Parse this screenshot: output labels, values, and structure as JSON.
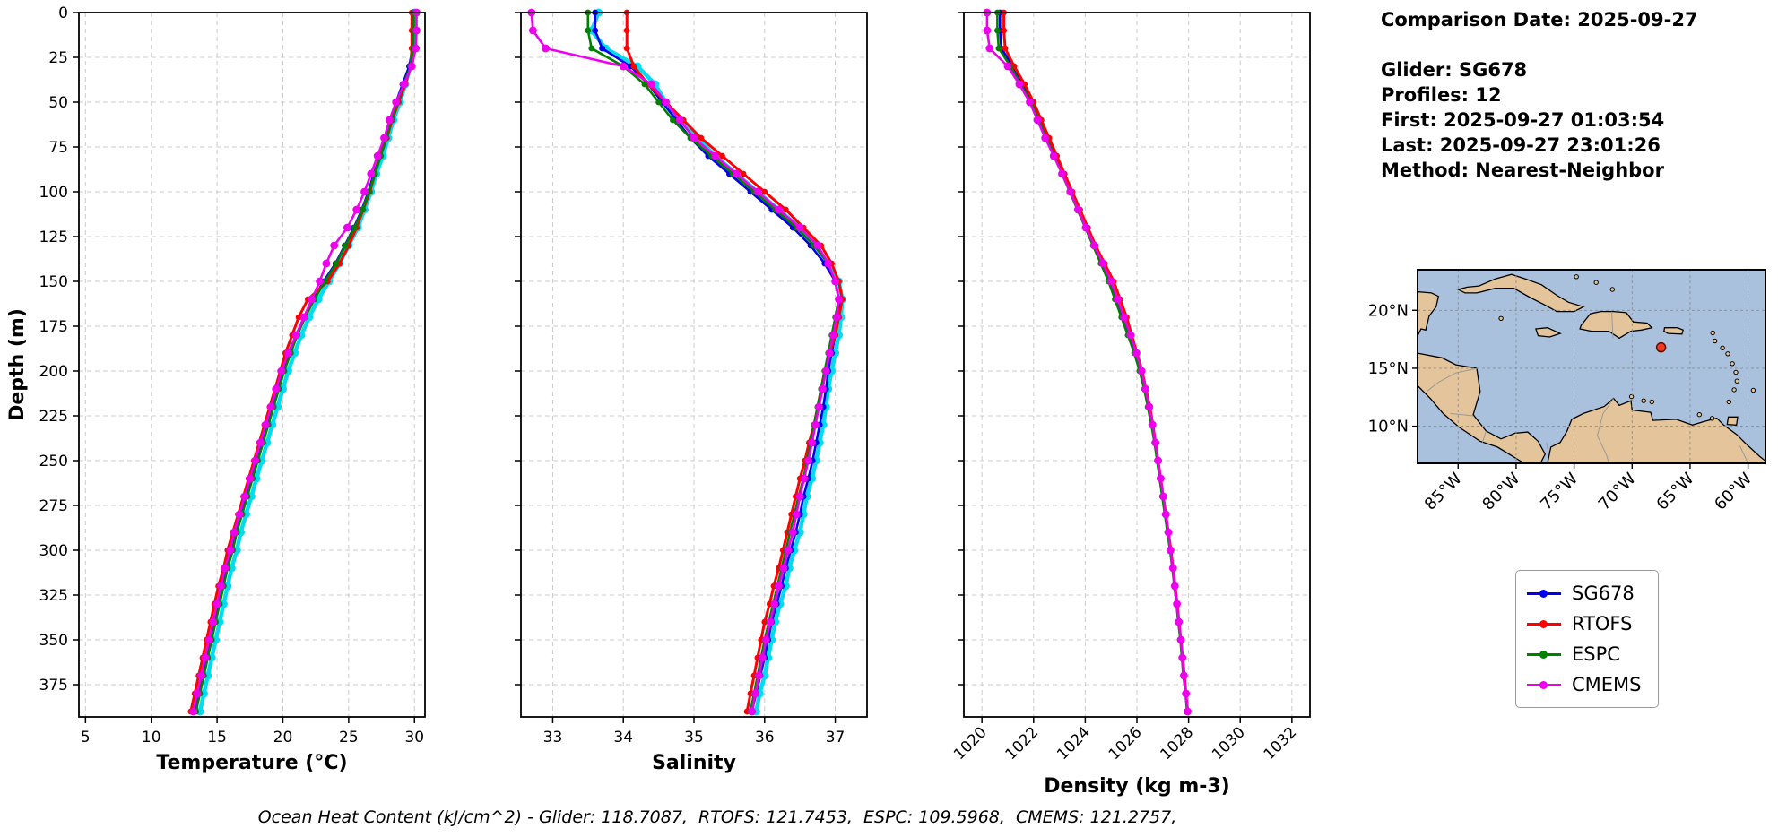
{
  "info": {
    "comparison_date": "Comparison Date: 2025-09-27",
    "glider": "Glider: SG678",
    "profiles": "Profiles: 12",
    "first": "First: 2025-09-27 01:03:54",
    "last": "Last: 2025-09-27 23:01:26",
    "method": "Method: Nearest-Neighbor"
  },
  "footer": {
    "text": "Ocean Heat Content (kJ/cm^2) - Glider: 118.7087,  RTOFS: 121.7453,  ESPC: 109.5968,  CMEMS: 121.2757,"
  },
  "legend": {
    "items": [
      {
        "label": "SG678",
        "color": "#0000ee"
      },
      {
        "label": "RTOFS",
        "color": "#ff0000"
      },
      {
        "label": "ESPC",
        "color": "#008000"
      },
      {
        "label": "CMEMS",
        "color": "#ee00ee"
      }
    ]
  },
  "map": {
    "extent": {
      "lon_min": -88.5,
      "lon_max": -58.5,
      "lat_min": 6.8,
      "lat_max": 23.5
    },
    "lon_ticks": [
      {
        "value": -85,
        "label": "85°W"
      },
      {
        "value": -80,
        "label": "80°W"
      },
      {
        "value": -75,
        "label": "75°W"
      },
      {
        "value": -70,
        "label": "70°W"
      },
      {
        "value": -65,
        "label": "65°W"
      },
      {
        "value": -60,
        "label": "60°W"
      }
    ],
    "lat_ticks": [
      {
        "value": 20,
        "label": "20°N"
      },
      {
        "value": 15,
        "label": "15°N"
      },
      {
        "value": 10,
        "label": "10°N"
      }
    ],
    "marker": {
      "lon": -67.5,
      "lat": 16.8,
      "color": "#f03b20"
    },
    "ocean_color": "#a9c1dd",
    "land_color": "#e3c49b"
  },
  "chart_data": [
    {
      "type": "line",
      "id": "temperature",
      "xlabel": "Temperature (°C)",
      "ylabel": "Depth (m)",
      "xlim": [
        4.5,
        30.8
      ],
      "ylim": [
        0,
        393
      ],
      "xticks": [
        5,
        10,
        15,
        20,
        25,
        30
      ],
      "yticks": [
        0,
        25,
        50,
        75,
        100,
        125,
        150,
        175,
        200,
        225,
        250,
        275,
        300,
        325,
        350,
        375
      ],
      "rotate_xtick_labels": false,
      "show_ytick_labels": true,
      "grid": true,
      "values_key": "temperature"
    },
    {
      "type": "line",
      "id": "salinity",
      "xlabel": "Salinity",
      "ylabel": "",
      "xlim": [
        32.55,
        37.45
      ],
      "ylim": [
        0,
        393
      ],
      "xticks": [
        33,
        34,
        35,
        36,
        37
      ],
      "yticks": [
        0,
        25,
        50,
        75,
        100,
        125,
        150,
        175,
        200,
        225,
        250,
        275,
        300,
        325,
        350,
        375
      ],
      "rotate_xtick_labels": false,
      "show_ytick_labels": false,
      "grid": true,
      "values_key": "salinity"
    },
    {
      "type": "line",
      "id": "density",
      "xlabel": "Density (kg m-3)",
      "ylabel": "",
      "xlim": [
        1019.3,
        1032.7
      ],
      "ylim": [
        0,
        393
      ],
      "xticks": [
        1020,
        1022,
        1024,
        1026,
        1028,
        1030,
        1032
      ],
      "yticks": [
        0,
        25,
        50,
        75,
        100,
        125,
        150,
        175,
        200,
        225,
        250,
        275,
        300,
        325,
        350,
        375
      ],
      "rotate_xtick_labels": true,
      "show_ytick_labels": false,
      "grid": true,
      "values_key": "density"
    }
  ],
  "profiles": {
    "depths_m": [
      0,
      10,
      20,
      30,
      40,
      50,
      60,
      70,
      80,
      90,
      100,
      110,
      120,
      130,
      140,
      150,
      160,
      170,
      180,
      190,
      200,
      210,
      220,
      230,
      240,
      250,
      260,
      270,
      280,
      290,
      300,
      310,
      320,
      330,
      340,
      350,
      360,
      370,
      380,
      390
    ],
    "series": [
      {
        "key": "glider_raw",
        "label": "Glider raw profiles",
        "color": "#00dbef",
        "line_width": 4.5,
        "marker_radius": 4.5,
        "in_legend": false,
        "temperature": [
          30.0,
          29.95,
          29.9,
          29.7,
          29.3,
          28.9,
          28.4,
          28.0,
          27.6,
          27.1,
          26.7,
          26.2,
          25.7,
          25.0,
          24.3,
          23.5,
          22.7,
          22.0,
          21.4,
          20.9,
          20.4,
          20.0,
          19.6,
          19.2,
          18.8,
          18.4,
          18.0,
          17.6,
          17.2,
          16.8,
          16.5,
          16.1,
          15.8,
          15.5,
          15.2,
          14.9,
          14.6,
          14.3,
          14.0,
          13.7
        ],
        "salinity": [
          33.65,
          33.55,
          33.75,
          34.2,
          34.45,
          34.6,
          34.8,
          35.05,
          35.3,
          35.6,
          35.9,
          36.2,
          36.5,
          36.72,
          36.9,
          37.05,
          37.1,
          37.08,
          37.05,
          37.0,
          36.95,
          36.9,
          36.87,
          36.83,
          36.78,
          36.73,
          36.67,
          36.6,
          36.55,
          36.5,
          36.42,
          36.35,
          36.3,
          36.22,
          36.15,
          36.1,
          36.05,
          36.0,
          35.93,
          35.88
        ],
        "density": null
      },
      {
        "key": "sg678",
        "label": "SG678",
        "color": "#0000ee",
        "line_width": 2.6,
        "marker_radius": 3.4,
        "in_legend": true,
        "temperature": [
          29.9,
          29.9,
          29.85,
          29.6,
          29.1,
          28.6,
          28.2,
          27.8,
          27.4,
          26.9,
          26.5,
          26.0,
          25.4,
          24.7,
          24.0,
          23.1,
          22.3,
          21.6,
          21.0,
          20.5,
          20.0,
          19.6,
          19.2,
          18.8,
          18.4,
          18.0,
          17.6,
          17.2,
          16.8,
          16.4,
          16.1,
          15.7,
          15.4,
          15.1,
          14.8,
          14.5,
          14.2,
          13.9,
          13.6,
          13.3
        ],
        "salinity": [
          33.6,
          33.6,
          33.7,
          34.1,
          34.35,
          34.55,
          34.75,
          34.95,
          35.2,
          35.5,
          35.8,
          36.1,
          36.4,
          36.65,
          36.85,
          37.0,
          37.05,
          37.05,
          37.0,
          36.95,
          36.9,
          36.87,
          36.83,
          36.78,
          36.73,
          36.68,
          36.62,
          36.55,
          36.5,
          36.44,
          36.37,
          36.3,
          36.24,
          36.17,
          36.1,
          36.05,
          36.0,
          35.94,
          35.88,
          35.82
        ],
        "density": [
          1020.7,
          1020.7,
          1020.75,
          1021.2,
          1021.6,
          1021.95,
          1022.25,
          1022.55,
          1022.85,
          1023.15,
          1023.45,
          1023.75,
          1024.05,
          1024.35,
          1024.65,
          1024.95,
          1025.2,
          1025.45,
          1025.7,
          1025.95,
          1026.15,
          1026.3,
          1026.45,
          1026.6,
          1026.7,
          1026.8,
          1026.9,
          1027.0,
          1027.1,
          1027.2,
          1027.3,
          1027.4,
          1027.45,
          1027.55,
          1027.6,
          1027.7,
          1027.75,
          1027.8,
          1027.9,
          1027.95
        ]
      },
      {
        "key": "rtofs",
        "label": "RTOFS",
        "color": "#ff0000",
        "line_width": 3.0,
        "marker_radius": 3.4,
        "in_legend": true,
        "temperature": [
          29.8,
          29.8,
          29.8,
          29.7,
          29.3,
          28.8,
          28.3,
          27.9,
          27.4,
          27.0,
          26.6,
          26.1,
          25.6,
          25.0,
          24.3,
          23.4,
          21.9,
          21.2,
          20.7,
          20.2,
          19.8,
          19.4,
          19.0,
          18.6,
          18.2,
          17.8,
          17.4,
          17.0,
          16.6,
          16.2,
          15.8,
          15.5,
          15.1,
          14.8,
          14.5,
          14.2,
          13.9,
          13.6,
          13.3,
          13.0
        ],
        "salinity": [
          34.05,
          34.05,
          34.05,
          34.15,
          34.35,
          34.6,
          34.85,
          35.1,
          35.4,
          35.7,
          36.0,
          36.3,
          36.55,
          36.8,
          36.95,
          37.05,
          37.1,
          37.05,
          37.0,
          36.92,
          36.85,
          36.8,
          36.75,
          36.7,
          36.63,
          36.57,
          36.5,
          36.44,
          36.38,
          36.32,
          36.26,
          36.2,
          36.13,
          36.07,
          36.0,
          35.95,
          35.9,
          35.85,
          35.8,
          35.75
        ],
        "density": [
          1020.85,
          1020.85,
          1020.9,
          1021.25,
          1021.65,
          1022.0,
          1022.3,
          1022.6,
          1022.9,
          1023.2,
          1023.5,
          1023.8,
          1024.1,
          1024.4,
          1024.75,
          1025.1,
          1025.35,
          1025.6,
          1025.8,
          1026.0,
          1026.2,
          1026.35,
          1026.5,
          1026.62,
          1026.72,
          1026.82,
          1026.92,
          1027.02,
          1027.12,
          1027.22,
          1027.32,
          1027.4,
          1027.48,
          1027.56,
          1027.63,
          1027.7,
          1027.77,
          1027.84,
          1027.9,
          1027.97
        ]
      },
      {
        "key": "espc",
        "label": "ESPC",
        "color": "#008000",
        "line_width": 2.6,
        "marker_radius": 3.4,
        "in_legend": true,
        "temperature": [
          29.95,
          29.95,
          29.9,
          29.7,
          29.2,
          28.7,
          28.25,
          27.85,
          27.45,
          27.0,
          26.55,
          26.05,
          25.45,
          24.75,
          24.05,
          23.2,
          22.4,
          21.7,
          21.1,
          20.6,
          20.1,
          19.7,
          19.3,
          18.9,
          18.5,
          18.1,
          17.7,
          17.3,
          16.9,
          16.5,
          16.2,
          15.8,
          15.5,
          15.2,
          14.9,
          14.6,
          14.3,
          14.0,
          13.7,
          13.4
        ],
        "salinity": [
          33.5,
          33.5,
          33.55,
          34.0,
          34.3,
          34.5,
          34.7,
          34.95,
          35.25,
          35.55,
          35.85,
          36.15,
          36.45,
          36.7,
          36.9,
          37.0,
          37.05,
          37.0,
          36.95,
          36.9,
          36.85,
          36.8,
          36.75,
          36.7,
          36.65,
          36.6,
          36.55,
          36.48,
          36.42,
          36.36,
          36.3,
          36.24,
          36.18,
          36.12,
          36.06,
          36.0,
          35.95,
          35.9,
          35.85,
          35.8
        ],
        "density": [
          1020.6,
          1020.6,
          1020.65,
          1021.1,
          1021.5,
          1021.9,
          1022.2,
          1022.5,
          1022.8,
          1023.1,
          1023.4,
          1023.7,
          1024.0,
          1024.3,
          1024.6,
          1024.9,
          1025.15,
          1025.4,
          1025.65,
          1025.9,
          1026.1,
          1026.28,
          1026.42,
          1026.56,
          1026.68,
          1026.78,
          1026.88,
          1026.98,
          1027.08,
          1027.18,
          1027.28,
          1027.37,
          1027.45,
          1027.53,
          1027.6,
          1027.68,
          1027.74,
          1027.8,
          1027.88,
          1027.94
        ]
      },
      {
        "key": "cmems",
        "label": "CMEMS",
        "color": "#ee00ee",
        "line_width": 2.6,
        "marker_radius": 4.4,
        "in_legend": true,
        "temperature": [
          30.15,
          30.15,
          30.1,
          29.8,
          29.2,
          28.6,
          28.1,
          27.7,
          27.2,
          26.7,
          26.2,
          25.6,
          24.9,
          23.9,
          23.3,
          22.8,
          22.2,
          21.6,
          21.0,
          20.4,
          19.9,
          19.5,
          19.1,
          18.7,
          18.3,
          17.9,
          17.5,
          17.1,
          16.7,
          16.3,
          16.0,
          15.6,
          15.3,
          15.0,
          14.7,
          14.4,
          14.1,
          13.8,
          13.5,
          13.2
        ],
        "salinity": [
          32.7,
          32.72,
          32.9,
          34.0,
          34.4,
          34.6,
          34.8,
          35.0,
          35.3,
          35.6,
          35.9,
          36.2,
          36.5,
          36.75,
          36.9,
          37.0,
          37.05,
          37.02,
          36.97,
          36.92,
          36.87,
          36.82,
          36.77,
          36.72,
          36.67,
          36.62,
          36.56,
          36.5,
          36.45,
          36.4,
          36.33,
          36.27,
          36.2,
          36.14,
          36.08,
          36.02,
          35.97,
          35.92,
          35.87,
          35.82
        ],
        "density": [
          1020.2,
          1020.2,
          1020.3,
          1021.0,
          1021.45,
          1021.85,
          1022.15,
          1022.45,
          1022.78,
          1023.1,
          1023.42,
          1023.72,
          1024.02,
          1024.35,
          1024.68,
          1025.0,
          1025.25,
          1025.5,
          1025.75,
          1025.98,
          1026.18,
          1026.33,
          1026.48,
          1026.6,
          1026.72,
          1026.82,
          1026.92,
          1027.02,
          1027.12,
          1027.22,
          1027.3,
          1027.4,
          1027.47,
          1027.55,
          1027.62,
          1027.7,
          1027.76,
          1027.82,
          1027.9,
          1027.96
        ]
      }
    ]
  }
}
